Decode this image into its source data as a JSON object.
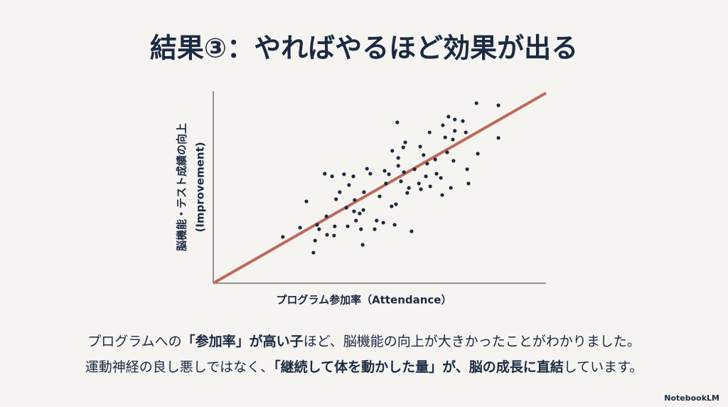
{
  "title": "結果③：やればやるほど効果が出る",
  "chart_data": {
    "type": "scatter",
    "x_label": "プログラム参加率（Attendance）",
    "y_label": [
      "脳機能・テスト成績の向上",
      "(Improvement)"
    ],
    "xlim": [
      0,
      100
    ],
    "ylim": [
      0,
      100
    ],
    "color": "#1b2943",
    "trend_line": {
      "x": [
        0,
        100
      ],
      "y": [
        0,
        99
      ],
      "color": "#c0685a"
    },
    "x": [
      20.9,
      26.1,
      28.0,
      30.1,
      30.6,
      31.2,
      31.8,
      33.5,
      34.0,
      34.2,
      35.7,
      36.3,
      36.5,
      36.9,
      38.0,
      39.3,
      40.0,
      40.4,
      40.8,
      42.1,
      42.3,
      42.5,
      42.9,
      44.0,
      44.4,
      44.9,
      45.1,
      45.3,
      46.2,
      47.2,
      48.5,
      49.1,
      50.0,
      51.1,
      51.5,
      51.9,
      52.8,
      53.6,
      53.8,
      54.5,
      54.9,
      55.3,
      55.6,
      55.6,
      56.4,
      57.1,
      57.3,
      57.7,
      58.3,
      58.8,
      59.6,
      60.5,
      61.8,
      62.2,
      62.4,
      63.2,
      63.9,
      64.3,
      65.0,
      65.2,
      66.7,
      67.1,
      68.4,
      68.8,
      69.0,
      69.7,
      70.3,
      70.7,
      71.4,
      72.0,
      72.2,
      72.6,
      72.6,
      75.0,
      75.9,
      76.3,
      76.7,
      79.1,
      79.5,
      85.7,
      85.7
    ],
    "values": [
      24.1,
      28.9,
      42.6,
      15.9,
      22.2,
      30.4,
      28.1,
      57.0,
      34.8,
      25.2,
      55.6,
      24.8,
      29.6,
      43.7,
      47.4,
      56.7,
      39.3,
      29.6,
      51.1,
      55.6,
      37.4,
      43.3,
      32.6,
      36.3,
      28.1,
      20.0,
      38.1,
      47.4,
      59.6,
      57.0,
      28.1,
      32.6,
      45.2,
      31.5,
      58.5,
      51.9,
      56.7,
      40.0,
      68.9,
      30.4,
      41.1,
      83.7,
      65.2,
      61.1,
      53.0,
      70.7,
      57.8,
      73.3,
      47.0,
      49.6,
      27.0,
      59.3,
      51.9,
      71.1,
      48.9,
      66.7,
      55.6,
      62.2,
      78.5,
      50.4,
      64.4,
      57.0,
      54.8,
      45.9,
      82.2,
      75.9,
      68.1,
      86.7,
      49.6,
      74.8,
      63.7,
      85.2,
      79.3,
      84.4,
      78.5,
      59.3,
      51.9,
      93.7,
      67.4,
      92.6,
      75.6
    ]
  },
  "body": [
    [
      {
        "text": "プログラムへの",
        "bold": false
      },
      {
        "text": "「参加率」が高い子",
        "bold": true
      },
      {
        "text": "ほど、脳機能の向上が大きかったことがわかりました。",
        "bold": false
      }
    ],
    [
      {
        "text": "運動神経の良し悪しではなく、",
        "bold": false
      },
      {
        "text": "「継続して体を動かした量」が、脳の成長に直結",
        "bold": true
      },
      {
        "text": "しています。",
        "bold": false
      }
    ]
  ],
  "logo": "NotebookLM"
}
